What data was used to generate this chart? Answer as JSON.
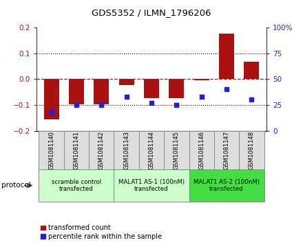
{
  "title": "GDS5352 / ILMN_1796206",
  "samples": [
    "GSM1081140",
    "GSM1081141",
    "GSM1081142",
    "GSM1081143",
    "GSM1081144",
    "GSM1081145",
    "GSM1081146",
    "GSM1081147",
    "GSM1081148"
  ],
  "red_bars": [
    -0.155,
    -0.098,
    -0.098,
    -0.022,
    -0.075,
    -0.075,
    -0.005,
    0.175,
    0.068
  ],
  "blue_dots": [
    18,
    25,
    25,
    33,
    27,
    25,
    33,
    40,
    30
  ],
  "ylim_left": [
    -0.2,
    0.2
  ],
  "ylim_right": [
    0,
    100
  ],
  "yticks_left": [
    -0.2,
    -0.1,
    0,
    0.1,
    0.2
  ],
  "yticks_right": [
    0,
    25,
    50,
    75,
    100
  ],
  "groups": [
    {
      "label": "scramble control\ntransfected",
      "start": 0,
      "end": 2,
      "color": "#ccffcc"
    },
    {
      "label": "MALAT1 AS-1 (100nM)\ntransfected",
      "start": 3,
      "end": 5,
      "color": "#ccffcc"
    },
    {
      "label": "MALAT1 AS-2 (100nM)\ntransfected",
      "start": 6,
      "end": 8,
      "color": "#44dd44"
    }
  ],
  "red_color": "#aa1111",
  "blue_color": "#2222cc",
  "legend_red": "transformed count",
  "legend_blue": "percentile rank within the sample",
  "protocol_label": "protocol",
  "bar_color_light": "#dddddd",
  "box_edge_color": "#888888"
}
